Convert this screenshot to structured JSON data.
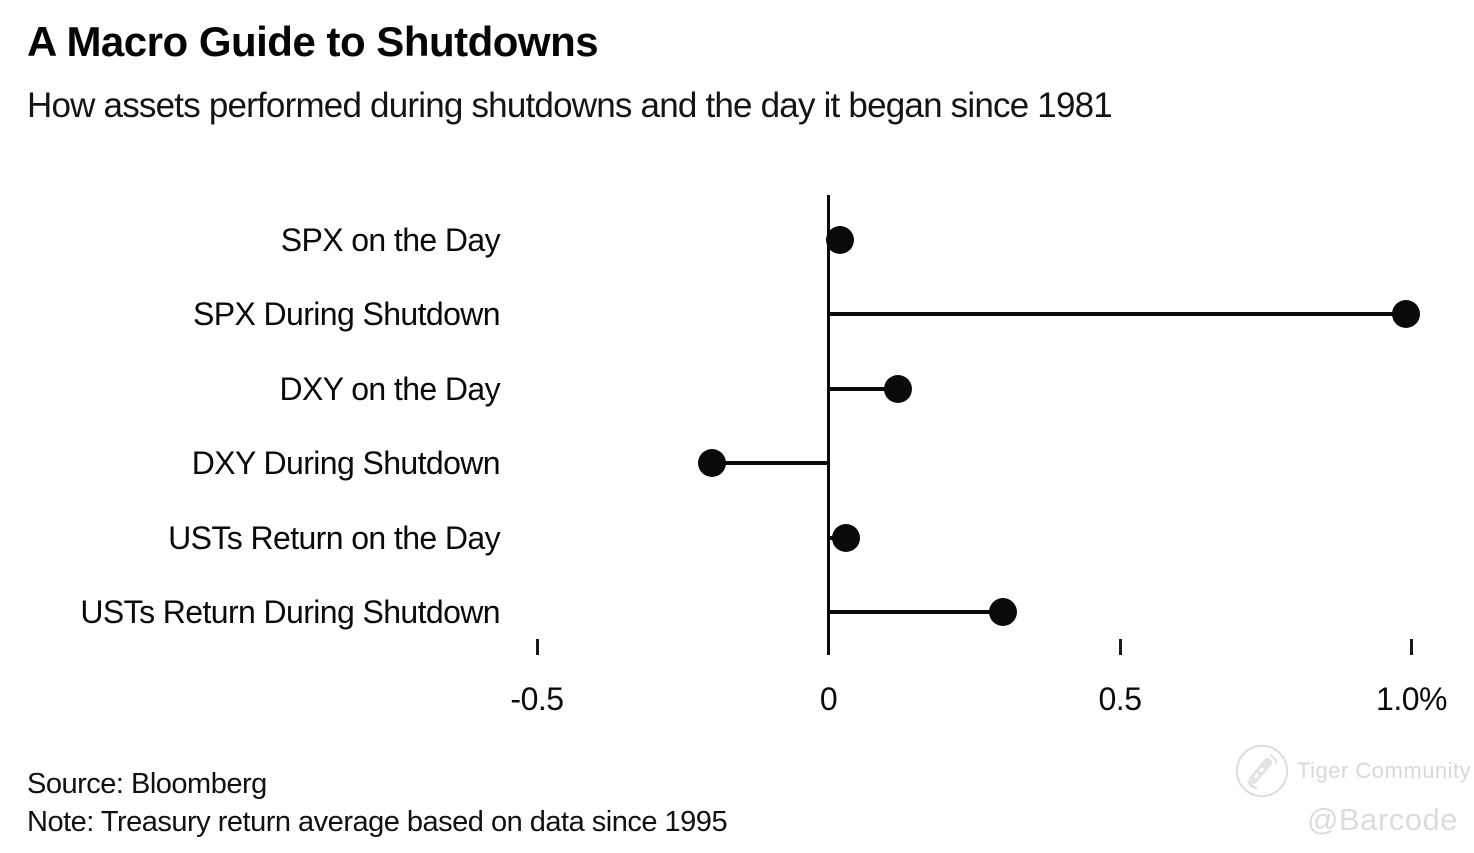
{
  "header": {
    "title": "A Macro Guide to Shutdowns",
    "subtitle": "How assets performed during shutdowns and the day it began since 1981"
  },
  "chart_data": {
    "type": "scatter",
    "style": "horizontal-lollipop",
    "title": "A Macro Guide to Shutdowns",
    "subtitle": "How assets performed during shutdowns and the day it began since 1981",
    "categories": [
      "SPX on the Day",
      "SPX During Shutdown",
      "DXY on the Day",
      "DXY During Shutdown",
      "USTs Return on the Day",
      "USTs Return During Shutdown"
    ],
    "values": [
      0.02,
      0.99,
      0.12,
      -0.2,
      0.03,
      0.3
    ],
    "unit": "%",
    "xlabel": "",
    "ylabel": "",
    "x_ticks": [
      -0.5,
      0,
      0.5,
      1.0
    ],
    "x_tick_labels": [
      "-0.5",
      "0",
      "0.5",
      "1.0%"
    ],
    "xlim": [
      -0.55,
      1.08
    ],
    "grid": false,
    "legend": false,
    "marker_color": "#0a0a0a",
    "stem_color": "#0a0a0a",
    "axis_color": "#0a0a0a"
  },
  "footer": {
    "source": "Source: Bloomberg",
    "note": "Note: Treasury return average based on data since 1995"
  },
  "watermark": {
    "community": "Tiger Community",
    "handle": "@Barcode",
    "logo_icon": "tiger-community-logo",
    "color": "#d9d9d9"
  }
}
